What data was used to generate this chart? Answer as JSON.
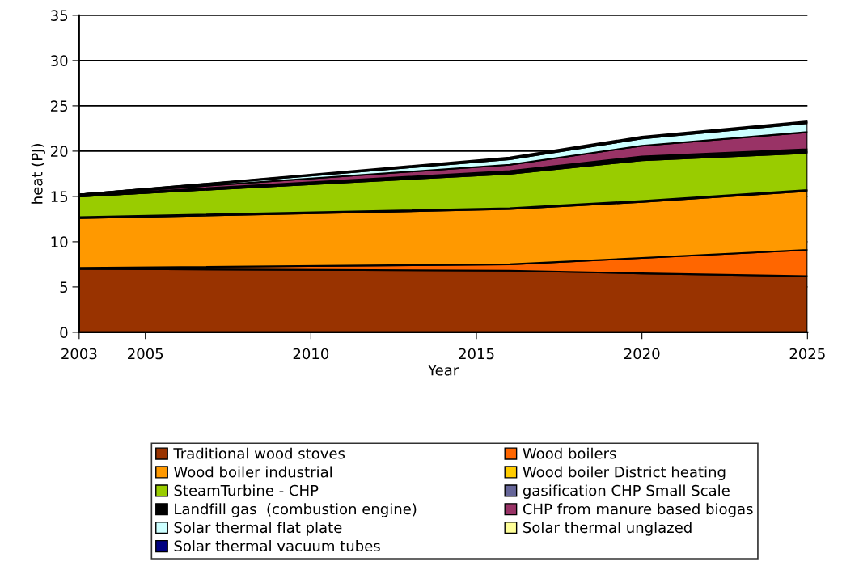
{
  "chart_data": {
    "type": "area",
    "stacked": true,
    "xlabel": "Year",
    "ylabel": "heat (PJ)",
    "x": [
      2003,
      2016,
      2020,
      2025
    ],
    "xlim": [
      2003,
      2025
    ],
    "xticks": [
      2003,
      2005,
      2010,
      2015,
      2020,
      2025
    ],
    "ylim": [
      0,
      35
    ],
    "yticks": [
      0,
      5,
      10,
      15,
      20,
      25,
      30,
      35
    ],
    "grid": "y",
    "legend": "bottom",
    "series": [
      {
        "name": "Traditional wood stoves",
        "color": "#993300",
        "values": [
          7.0,
          6.8,
          6.5,
          6.2
        ]
      },
      {
        "name": "Wood boilers",
        "color": "#ff6600",
        "values": [
          0.1,
          0.7,
          1.7,
          2.9
        ]
      },
      {
        "name": "Wood boiler industrial",
        "color": "#ff9900",
        "values": [
          5.5,
          6.1,
          6.2,
          6.5
        ]
      },
      {
        "name": "Wood boiler District heating",
        "color": "#ffcc00",
        "values": [
          0.1,
          0.1,
          0.1,
          0.1
        ]
      },
      {
        "name": "SteamTurbine - CHP",
        "color": "#99cc00",
        "values": [
          2.3,
          3.8,
          4.5,
          4.1
        ]
      },
      {
        "name": "gasification CHP Small Scale",
        "color": "#666699",
        "values": [
          0,
          0.1,
          0.1,
          0.1
        ]
      },
      {
        "name": "Landfill gas  (combustion engine)",
        "color": "#000000",
        "values": [
          0.1,
          0.2,
          0.3,
          0.3
        ]
      },
      {
        "name": "CHP from manure based biogas",
        "color": "#993366",
        "values": [
          0.1,
          0.7,
          1.2,
          1.9
        ]
      },
      {
        "name": "Solar thermal flat plate",
        "color": "#ccffff",
        "values": [
          0,
          0.6,
          0.8,
          1.0
        ]
      },
      {
        "name": "Solar thermal unglazed",
        "color": "#ffff99",
        "values": [
          0,
          0.1,
          0.1,
          0.1
        ]
      },
      {
        "name": "Solar thermal vacuum tubes",
        "color": "#000080",
        "values": [
          0,
          0.1,
          0.1,
          0.1
        ]
      }
    ]
  }
}
